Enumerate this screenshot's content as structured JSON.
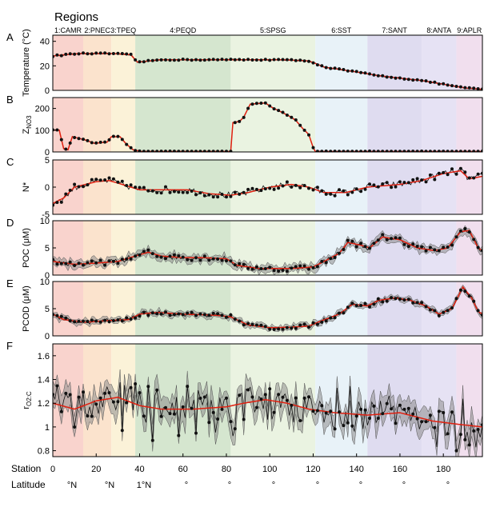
{
  "chart_data": {
    "type": "line",
    "title": "Regions",
    "x_range": [
      0,
      198
    ],
    "regions": [
      {
        "label": "1:CAMR",
        "start": 0,
        "end": 14,
        "color": "#f9d3cd"
      },
      {
        "label": "2:PNEC",
        "start": 14,
        "end": 27,
        "color": "#fbe3cd"
      },
      {
        "label": "3:TPEQ",
        "start": 27,
        "end": 38,
        "color": "#fbf2d8"
      },
      {
        "label": "4:PEQD",
        "start": 38,
        "end": 82,
        "color": "#d5e6cf"
      },
      {
        "label": "5:SPSG",
        "start": 82,
        "end": 121,
        "color": "#eaf3e1"
      },
      {
        "label": "6:SST",
        "start": 121,
        "end": 145,
        "color": "#e8f2f8"
      },
      {
        "label": "7:SANT",
        "start": 145,
        "end": 170,
        "color": "#dfdcf0"
      },
      {
        "label": "8:ANTA",
        "start": 170,
        "end": 186,
        "color": "#e6e2f4"
      },
      {
        "label": "9:APLR",
        "start": 186,
        "end": 198,
        "color": "#f1dfee"
      }
    ],
    "panels": [
      {
        "letter": "A",
        "ylabel": "Temperature (°C)",
        "ylim": [
          0,
          45
        ],
        "yticks": [
          "0",
          "20",
          "40"
        ],
        "knots": [
          [
            0,
            28
          ],
          [
            5,
            29
          ],
          [
            12,
            30
          ],
          [
            20,
            30
          ],
          [
            28,
            30
          ],
          [
            36,
            29
          ],
          [
            39,
            23
          ],
          [
            50,
            25
          ],
          [
            65,
            25
          ],
          [
            85,
            25
          ],
          [
            105,
            25
          ],
          [
            118,
            24
          ],
          [
            121,
            22
          ],
          [
            125,
            19
          ],
          [
            140,
            15
          ],
          [
            150,
            12
          ],
          [
            160,
            10
          ],
          [
            170,
            8
          ],
          [
            180,
            5
          ],
          [
            190,
            2
          ],
          [
            197,
            1
          ]
        ],
        "noise": 0.5,
        "band": 0,
        "steps": 3,
        "step_fraction": 0
      },
      {
        "letter": "B",
        "ylabel": "Z",
        "ylabel_sub": "NO3",
        "ylim": [
          0,
          250
        ],
        "yticks": [
          "0",
          "100",
          "200"
        ],
        "knots": [
          [
            0,
            100
          ],
          [
            3,
            100
          ],
          [
            5,
            15
          ],
          [
            7,
            10
          ],
          [
            9,
            70
          ],
          [
            15,
            55
          ],
          [
            19,
            40
          ],
          [
            25,
            45
          ],
          [
            27,
            70
          ],
          [
            31,
            70
          ],
          [
            34,
            35
          ],
          [
            37,
            10
          ],
          [
            41,
            2
          ],
          [
            75,
            2
          ],
          [
            82,
            2
          ],
          [
            83,
            135
          ],
          [
            86,
            140
          ],
          [
            88,
            160
          ],
          [
            91,
            220
          ],
          [
            98,
            225
          ],
          [
            101,
            205
          ],
          [
            105,
            185
          ],
          [
            109,
            165
          ],
          [
            112,
            145
          ],
          [
            115,
            110
          ],
          [
            118,
            80
          ],
          [
            120,
            20
          ],
          [
            121,
            2
          ],
          [
            198,
            2
          ]
        ],
        "noise": 2,
        "band": 0,
        "steps": 0,
        "step_fraction": 0
      },
      {
        "letter": "C",
        "ylabel": "N*",
        "ylim": [
          -5,
          5
        ],
        "yticks": [
          "-5",
          "0",
          "5"
        ],
        "knots": [
          [
            0,
            -3
          ],
          [
            5,
            -2
          ],
          [
            10,
            0
          ],
          [
            15,
            0.5
          ],
          [
            20,
            1
          ],
          [
            26,
            1.2
          ],
          [
            32,
            0.5
          ],
          [
            40,
            -0.5
          ],
          [
            50,
            -0.5
          ],
          [
            62,
            -0.5
          ],
          [
            72,
            -1.2
          ],
          [
            82,
            -1.5
          ],
          [
            90,
            -1
          ],
          [
            100,
            0
          ],
          [
            110,
            0.5
          ],
          [
            118,
            0
          ],
          [
            125,
            -1
          ],
          [
            135,
            -1
          ],
          [
            145,
            0
          ],
          [
            160,
            0.5
          ],
          [
            170,
            1.2
          ],
          [
            180,
            2.5
          ],
          [
            188,
            3
          ],
          [
            192,
            1.5
          ],
          [
            198,
            2
          ]
        ],
        "noise": 0.6,
        "band": 0,
        "steps": 0,
        "step_fraction": 0
      },
      {
        "letter": "D",
        "ylabel": "POC (μM)",
        "ylim": [
          0,
          10
        ],
        "yticks": [
          "0",
          "5",
          "10"
        ],
        "knots": [
          [
            0,
            2.5
          ],
          [
            10,
            2
          ],
          [
            20,
            2.2
          ],
          [
            30,
            2.5
          ],
          [
            38,
            3.5
          ],
          [
            44,
            4.2
          ],
          [
            50,
            3.5
          ],
          [
            60,
            3.2
          ],
          [
            70,
            3.2
          ],
          [
            80,
            3
          ],
          [
            85,
            1.8
          ],
          [
            95,
            1.2
          ],
          [
            110,
            1.2
          ],
          [
            120,
            1.5
          ],
          [
            125,
            2.5
          ],
          [
            132,
            4
          ],
          [
            136,
            6
          ],
          [
            142,
            5.5
          ],
          [
            146,
            5
          ],
          [
            152,
            7
          ],
          [
            160,
            6.5
          ],
          [
            168,
            5
          ],
          [
            176,
            4.5
          ],
          [
            182,
            5
          ],
          [
            188,
            8
          ],
          [
            192,
            8.2
          ],
          [
            196,
            5
          ],
          [
            198,
            4.5
          ]
        ],
        "noise": 0.5,
        "band": 0.7,
        "steps": 0,
        "step_fraction": 0
      },
      {
        "letter": "E",
        "ylabel": "PCOD (μM)",
        "ylim": [
          0,
          10
        ],
        "yticks": [
          "0",
          "5",
          "10"
        ],
        "knots": [
          [
            0,
            4
          ],
          [
            5,
            3
          ],
          [
            15,
            2.5
          ],
          [
            25,
            2.8
          ],
          [
            35,
            3
          ],
          [
            40,
            4
          ],
          [
            48,
            4.3
          ],
          [
            60,
            4
          ],
          [
            75,
            3.8
          ],
          [
            82,
            3.5
          ],
          [
            90,
            2
          ],
          [
            100,
            1.5
          ],
          [
            110,
            1.6
          ],
          [
            118,
            1.8
          ],
          [
            124,
            2.8
          ],
          [
            132,
            4
          ],
          [
            138,
            5.8
          ],
          [
            145,
            5.5
          ],
          [
            150,
            6.5
          ],
          [
            158,
            7
          ],
          [
            165,
            6.5
          ],
          [
            172,
            5.5
          ],
          [
            178,
            4
          ],
          [
            184,
            5
          ],
          [
            189,
            9
          ],
          [
            193,
            7
          ],
          [
            196,
            4.5
          ],
          [
            198,
            4
          ]
        ],
        "noise": 0.4,
        "band": 0.5,
        "steps": 0,
        "step_fraction": 0
      },
      {
        "letter": "F",
        "ylabel": "r",
        "ylabel_sub": "O2:C",
        "ylim": [
          0.75,
          1.7
        ],
        "yticks": [
          "0.8",
          "1",
          "1.2",
          "1.4",
          "1.6"
        ],
        "knots": [
          [
            0,
            1.2
          ],
          [
            10,
            1.15
          ],
          [
            20,
            1.22
          ],
          [
            30,
            1.25
          ],
          [
            40,
            1.18
          ],
          [
            50,
            1.15
          ],
          [
            65,
            1.15
          ],
          [
            80,
            1.17
          ],
          [
            88,
            1.2
          ],
          [
            98,
            1.23
          ],
          [
            108,
            1.2
          ],
          [
            118,
            1.15
          ],
          [
            130,
            1.12
          ],
          [
            145,
            1.1
          ],
          [
            160,
            1.12
          ],
          [
            175,
            1.05
          ],
          [
            188,
            1.02
          ],
          [
            198,
            1.0
          ]
        ],
        "noise": 0.12,
        "band": 0.1,
        "steps": 0,
        "step_fraction": 0.35
      }
    ],
    "x_axis": {
      "label": "Station",
      "ticks": [
        "0",
        "20",
        "40",
        "60",
        "80",
        "100",
        "120",
        "140",
        "160",
        "180"
      ]
    },
    "latitude": {
      "label": "Latitude",
      "marks": [
        "°N",
        "°N",
        "1°N",
        "°",
        "°",
        "°",
        "°",
        "°",
        "°",
        "°"
      ]
    }
  }
}
